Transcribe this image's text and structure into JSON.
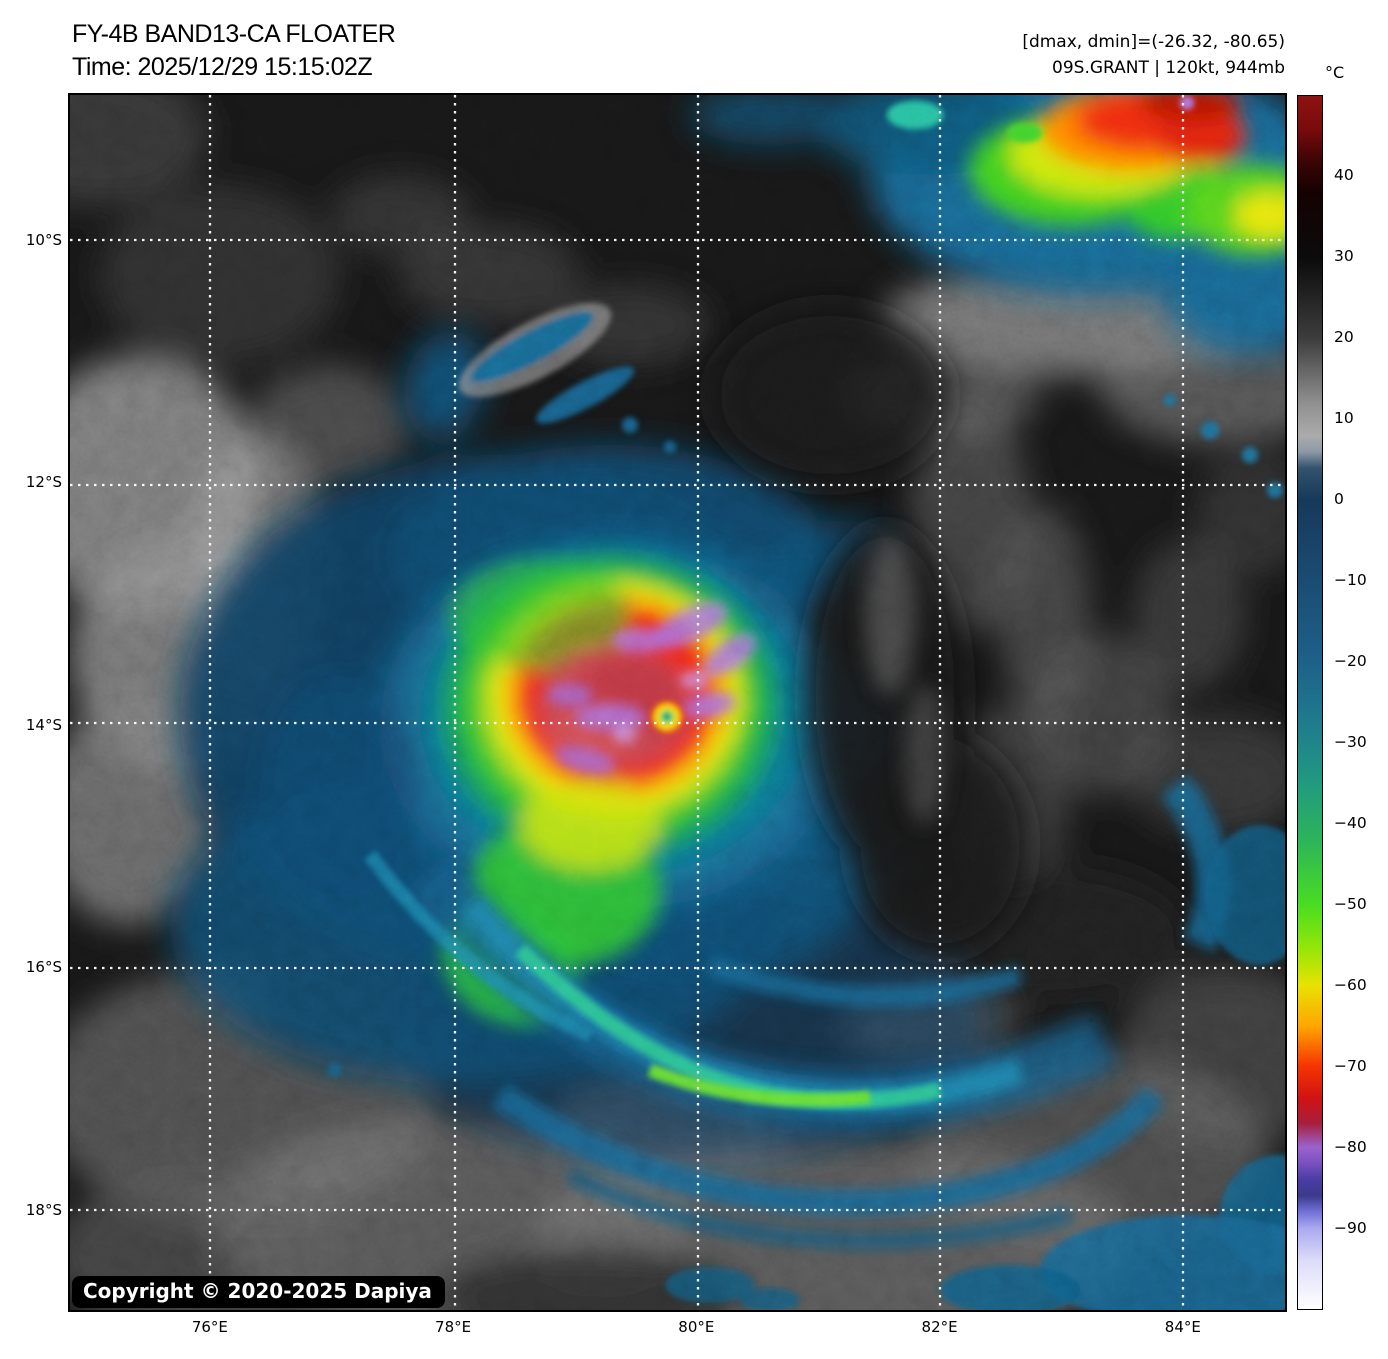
{
  "header": {
    "title_line1": "FY-4B BAND13-CA FLOATER",
    "title_line2": "Time: 2025/12/29 15:15:02Z",
    "annotation_line1": "[dmax, dmin]=(-26.32, -80.65)",
    "annotation_line2": "09S.GRANT | 120kt, 944mb"
  },
  "map": {
    "copyright": "Copyright © 2020-2025 Dapiya",
    "grid": {
      "line_style": "dotted",
      "line_color": "#ffffff"
    }
  },
  "axes": {
    "lat_ticks": [
      {
        "label": "10°S",
        "deg": 10
      },
      {
        "label": "12°S",
        "deg": 12
      },
      {
        "label": "14°S",
        "deg": 14
      },
      {
        "label": "16°S",
        "deg": 16
      },
      {
        "label": "18°S",
        "deg": 18
      }
    ],
    "lon_ticks": [
      {
        "label": "76°E",
        "deg": 76
      },
      {
        "label": "78°E",
        "deg": 78
      },
      {
        "label": "80°E",
        "deg": 80
      },
      {
        "label": "82°E",
        "deg": 82
      },
      {
        "label": "84°E",
        "deg": 84
      }
    ],
    "lat_range_deg": [
      8.8,
      18.82
    ],
    "lon_range_deg": [
      74.85,
      84.84
    ]
  },
  "colorbar": {
    "unit_label": "°C",
    "value_range": [
      50,
      -100
    ],
    "ticks": [
      {
        "label": "40",
        "value": 40
      },
      {
        "label": "30",
        "value": 30
      },
      {
        "label": "20",
        "value": 20
      },
      {
        "label": "10",
        "value": 10
      },
      {
        "label": "0",
        "value": 0
      },
      {
        "label": "−10",
        "value": -10
      },
      {
        "label": "−20",
        "value": -20
      },
      {
        "label": "−30",
        "value": -30
      },
      {
        "label": "−40",
        "value": -40
      },
      {
        "label": "−50",
        "value": -50
      },
      {
        "label": "−60",
        "value": -60
      },
      {
        "label": "−70",
        "value": -70
      },
      {
        "label": "−80",
        "value": -80
      },
      {
        "label": "−90",
        "value": -90
      }
    ],
    "gradient_stops": [
      {
        "value": 50,
        "color": "#8e1212"
      },
      {
        "value": 46,
        "color": "#7a0b0b"
      },
      {
        "value": 42,
        "color": "#3c0505"
      },
      {
        "value": 38,
        "color": "#140202"
      },
      {
        "value": 30,
        "color": "#0b0b0b"
      },
      {
        "value": 20,
        "color": "#3d3d3d"
      },
      {
        "value": 12,
        "color": "#909090"
      },
      {
        "value": 8,
        "color": "#ababab"
      },
      {
        "value": 6,
        "color": "#8e99a6"
      },
      {
        "value": 4,
        "color": "#33536d"
      },
      {
        "value": 0,
        "color": "#16395a"
      },
      {
        "value": -10,
        "color": "#1b4c73"
      },
      {
        "value": -20,
        "color": "#1d6189"
      },
      {
        "value": -28,
        "color": "#1f7d8d"
      },
      {
        "value": -35,
        "color": "#219a80"
      },
      {
        "value": -42,
        "color": "#2cb45b"
      },
      {
        "value": -50,
        "color": "#49dd21"
      },
      {
        "value": -55,
        "color": "#8ee60a"
      },
      {
        "value": -60,
        "color": "#e8e201"
      },
      {
        "value": -65,
        "color": "#ffa600"
      },
      {
        "value": -70,
        "color": "#f63300"
      },
      {
        "value": -74,
        "color": "#cf1313"
      },
      {
        "value": -77,
        "color": "#a81e3c"
      },
      {
        "value": -80,
        "color": "#9a63cf"
      },
      {
        "value": -82,
        "color": "#7950c0"
      },
      {
        "value": -84,
        "color": "#4a3da6"
      },
      {
        "value": -86,
        "color": "#3b3a8c"
      },
      {
        "value": -88,
        "color": "#7272d8"
      },
      {
        "value": -90,
        "color": "#a9a9ef"
      },
      {
        "value": -94,
        "color": "#dcdcf9"
      },
      {
        "value": -100,
        "color": "#ffffff"
      }
    ]
  },
  "scene_palette": {
    "background": "#161616",
    "cloud_gray": "#8a8a8a",
    "shield_blue": "#15638d",
    "ring_teal": "#10798f",
    "ring_green": "#2fc02c",
    "ring_yellow": "#eeea07",
    "ring_orange": "#ff9500",
    "core_red": "#ee2512",
    "core_crimson": "#c23a46",
    "overshoot_purple": "#a26ae0",
    "eye_ring_yellow": "#ffe12a",
    "eye_center_teal": "#18b87a"
  }
}
